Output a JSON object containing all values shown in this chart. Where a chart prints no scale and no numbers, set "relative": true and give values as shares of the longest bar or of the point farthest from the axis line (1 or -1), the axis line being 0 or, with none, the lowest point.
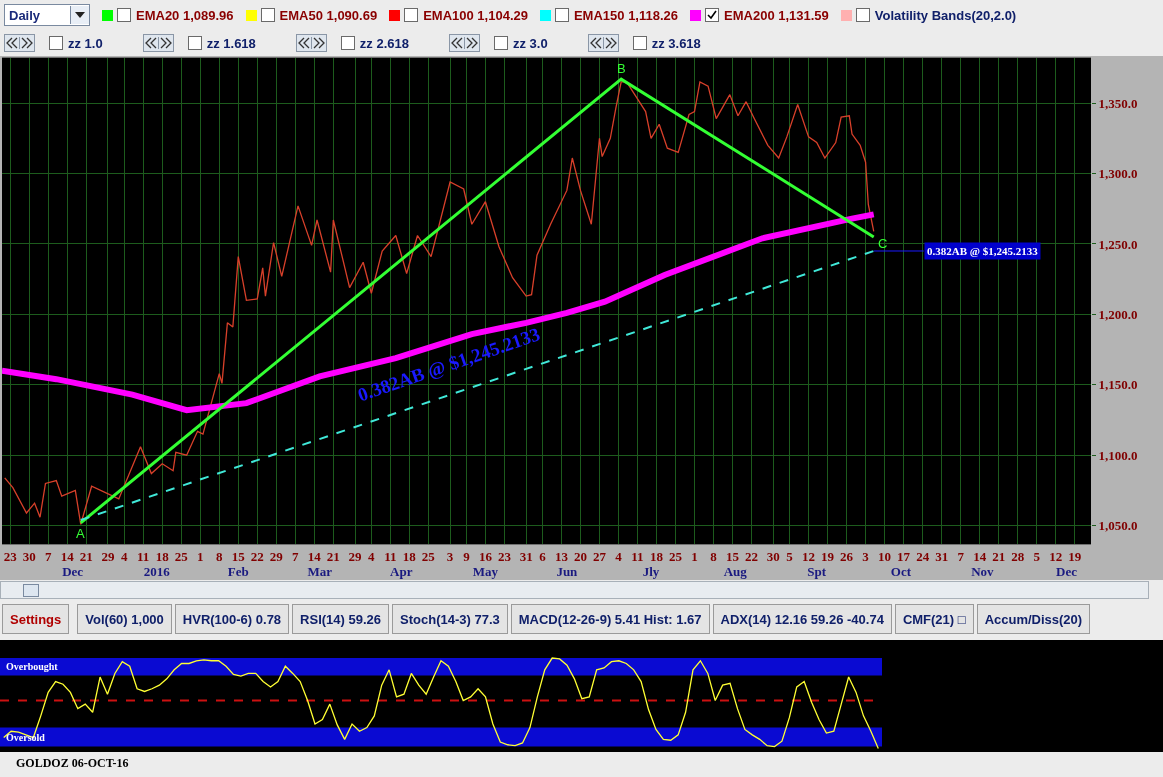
{
  "chart_data": [
    {
      "type": "other",
      "annotations": [
        "Daily",
        "EMA20 1,089.96",
        "EMA50 1,090.69",
        "EMA100 1,104.29",
        "EMA150 1,118.26",
        "EMA200 1,131.59",
        "Volatility Bands(20,2.0)",
        "zz 1.0",
        "zz 1.618",
        "zz 2.618",
        "zz 3.0",
        "zz 3.618"
      ]
    },
    {
      "type": "line",
      "grid": true,
      "x": [
        "2015-11-21",
        "2015-11-24",
        "2015-11-29",
        "2015-12-02",
        "2015-12-04",
        "2015-12-06",
        "2015-12-10",
        "2015-12-12",
        "2015-12-17",
        "2015-12-19",
        "2015-12-23",
        "2016-01-02",
        "2016-01-10",
        "2016-01-14",
        "2016-01-18",
        "2016-01-22",
        "2016-01-23",
        "2016-01-27",
        "2016-01-31",
        "2016-02-02",
        "2016-02-08",
        "2016-02-09",
        "2016-02-11",
        "2016-02-13",
        "2016-02-15",
        "2016-02-18",
        "2016-02-22",
        "2016-02-24",
        "2016-02-25",
        "2016-02-28",
        "2016-03-02",
        "2016-03-08",
        "2016-03-13",
        "2016-03-15",
        "2016-03-20",
        "2016-03-21",
        "2016-03-27",
        "2016-04-01",
        "2016-04-04",
        "2016-04-08",
        "2016-04-13",
        "2016-04-17",
        "2016-04-21",
        "2016-04-26",
        "2016-05-03",
        "2016-05-08",
        "2016-05-11",
        "2016-05-16",
        "2016-05-21",
        "2016-05-26",
        "2016-05-31",
        "2016-06-02",
        "2016-06-04",
        "2016-06-09",
        "2016-06-15",
        "2016-06-17",
        "2016-06-20",
        "2016-06-24",
        "2016-06-27",
        "2016-06-28",
        "2016-07-01",
        "2016-07-03",
        "2016-07-05",
        "2016-07-07",
        "2016-07-10",
        "2016-07-14",
        "2016-07-16",
        "2016-07-19",
        "2016-07-22",
        "2016-07-26",
        "2016-07-30",
        "2016-08-01",
        "2016-08-03",
        "2016-08-06",
        "2016-08-09",
        "2016-08-14",
        "2016-08-17",
        "2016-08-20",
        "2016-08-23",
        "2016-08-28",
        "2016-09-01",
        "2016-09-04",
        "2016-09-08",
        "2016-09-12",
        "2016-09-15",
        "2016-09-18",
        "2016-09-22",
        "2016-09-24",
        "2016-09-27",
        "2016-09-28",
        "2016-10-01",
        "2016-10-03",
        "2016-10-04",
        "2016-10-06"
      ],
      "series": [
        {
          "color": "#d8402a",
          "values": [
            1084,
            1077,
            1059,
            1066,
            1056,
            1080,
            1082,
            1071,
            1075,
            1051,
            1078,
            1069,
            1106,
            1087,
            1094,
            1089,
            1102,
            1100,
            1117,
            1115,
            1158,
            1151,
            1194,
            1191,
            1241,
            1210,
            1211,
            1233,
            1213,
            1251,
            1227,
            1277,
            1249,
            1267,
            1230,
            1267,
            1219,
            1237,
            1215,
            1245,
            1256,
            1229,
            1256,
            1241,
            1294,
            1289,
            1264,
            1280,
            1248,
            1226,
            1213,
            1214,
            1242,
            1264,
            1288,
            1311,
            1288,
            1264,
            1325,
            1312,
            1325,
            1346,
            1365,
            1365,
            1356,
            1344,
            1325,
            1335,
            1318,
            1315,
            1342,
            1344,
            1365,
            1362,
            1339,
            1356,
            1341,
            1351,
            1339,
            1320,
            1311,
            1326,
            1349,
            1326,
            1322,
            1311,
            1322,
            1340,
            1341,
            1328,
            1320,
            1308,
            1278,
            1259
          ]
        },
        {
          "color": "#ff00ff",
          "x": [
            "2015-11-20",
            "2015-12-10",
            "2016-01-07",
            "2016-01-27",
            "2016-02-18",
            "2016-03-16",
            "2016-04-13",
            "2016-05-11",
            "2016-05-31",
            "2016-06-15",
            "2016-06-29",
            "2016-07-21",
            "2016-08-26",
            "2016-09-28",
            "2016-10-06"
          ],
          "values": [
            1160,
            1154,
            1143,
            1132,
            1137,
            1156,
            1169,
            1186,
            1194,
            1201,
            1209,
            1228,
            1254,
            1268,
            1271
          ]
        },
        {
          "color": "#33ff33",
          "x": [
            "2015-12-19",
            "2016-07-05",
            "2016-10-06"
          ],
          "values": [
            1052,
            1367,
            1255
          ]
        },
        {
          "color": "#40e8d8",
          "line_style": "dashed",
          "x": [
            "2015-12-19",
            "2016-10-06"
          ],
          "values": [
            1054,
            1245
          ]
        }
      ],
      "xlim": [
        "2015-11-20",
        "2016-12-25"
      ],
      "xticks": [
        {
          "value": "2015-11-23",
          "label": "23"
        },
        {
          "value": "2015-11-30",
          "label": "30"
        },
        {
          "value": "2015-12-07",
          "label": "7"
        },
        {
          "value": "2015-12-14",
          "label": "14"
        },
        {
          "value": "2015-12-21",
          "label": "21"
        },
        {
          "value": "2015-12-29",
          "label": "29"
        },
        {
          "value": "2016-01-04",
          "label": "4"
        },
        {
          "value": "2016-01-11",
          "label": "11"
        },
        {
          "value": "2016-01-18",
          "label": "18"
        },
        {
          "value": "2016-01-25",
          "label": "25"
        },
        {
          "value": "2016-02-01",
          "label": "1"
        },
        {
          "value": "2016-02-08",
          "label": "8"
        },
        {
          "value": "2016-02-15",
          "label": "15"
        },
        {
          "value": "2016-02-22",
          "label": "22"
        },
        {
          "value": "2016-02-29",
          "label": "29"
        },
        {
          "value": "2016-03-07",
          "label": "7"
        },
        {
          "value": "2016-03-14",
          "label": "14"
        },
        {
          "value": "2016-03-21",
          "label": "21"
        },
        {
          "value": "2016-03-29",
          "label": "29"
        },
        {
          "value": "2016-04-04",
          "label": "4"
        },
        {
          "value": "2016-04-11",
          "label": "11"
        },
        {
          "value": "2016-04-18",
          "label": "18"
        },
        {
          "value": "2016-04-25",
          "label": "25"
        },
        {
          "value": "2016-05-03",
          "label": "3"
        },
        {
          "value": "2016-05-09",
          "label": "9"
        },
        {
          "value": "2016-05-16",
          "label": "16"
        },
        {
          "value": "2016-05-23",
          "label": "23"
        },
        {
          "value": "2016-05-31",
          "label": "31"
        },
        {
          "value": "2016-06-06",
          "label": "6"
        },
        {
          "value": "2016-06-13",
          "label": "13"
        },
        {
          "value": "2016-06-20",
          "label": "20"
        },
        {
          "value": "2016-06-27",
          "label": "27"
        },
        {
          "value": "2016-07-04",
          "label": "4"
        },
        {
          "value": "2016-07-11",
          "label": "11"
        },
        {
          "value": "2016-07-18",
          "label": "18"
        },
        {
          "value": "2016-07-25",
          "label": "25"
        },
        {
          "value": "2016-08-01",
          "label": "1"
        },
        {
          "value": "2016-08-08",
          "label": "8"
        },
        {
          "value": "2016-08-15",
          "label": "15"
        },
        {
          "value": "2016-08-22",
          "label": "22"
        },
        {
          "value": "2016-08-30",
          "label": "30"
        },
        {
          "value": "2016-09-05",
          "label": "5"
        },
        {
          "value": "2016-09-12",
          "label": "12"
        },
        {
          "value": "2016-09-19",
          "label": "19"
        },
        {
          "value": "2016-09-26",
          "label": "26"
        },
        {
          "value": "2016-10-03",
          "label": "3"
        },
        {
          "value": "2016-10-10",
          "label": "10"
        },
        {
          "value": "2016-10-17",
          "label": "17"
        },
        {
          "value": "2016-10-24",
          "label": "24"
        },
        {
          "value": "2016-10-31",
          "label": "31"
        },
        {
          "value": "2016-11-07",
          "label": "7"
        },
        {
          "value": "2016-11-14",
          "label": "14"
        },
        {
          "value": "2016-11-21",
          "label": "21"
        },
        {
          "value": "2016-11-28",
          "label": "28"
        },
        {
          "value": "2016-12-05",
          "label": "5"
        },
        {
          "value": "2016-12-12",
          "label": "12"
        },
        {
          "value": "2016-12-19",
          "label": "19"
        }
      ],
      "x2lim": [
        "2015-11-20",
        "2016-12-25"
      ],
      "x2ticks": [
        {
          "value": "2015-12-16",
          "label": "Dec"
        },
        {
          "value": "2016-01-16",
          "label": "2016"
        },
        {
          "value": "2016-02-15",
          "label": "Feb"
        },
        {
          "value": "2016-03-16",
          "label": "Mar"
        },
        {
          "value": "2016-04-15",
          "label": "Apr"
        },
        {
          "value": "2016-05-16",
          "label": "May"
        },
        {
          "value": "2016-06-15",
          "label": "Jun"
        },
        {
          "value": "2016-07-16",
          "label": "Jly"
        },
        {
          "value": "2016-08-16",
          "label": "Aug"
        },
        {
          "value": "2016-09-15",
          "label": "Spt"
        },
        {
          "value": "2016-10-16",
          "label": "Oct"
        },
        {
          "value": "2016-11-15",
          "label": "Nov"
        },
        {
          "value": "2016-12-16",
          "label": "Dec"
        }
      ],
      "ylim": [
        1037,
        1382
      ],
      "yticks": [
        {
          "value": 1050,
          "label": "1,050.0"
        },
        {
          "value": 1100,
          "label": "1,100.0"
        },
        {
          "value": 1150,
          "label": "1,150.0"
        },
        {
          "value": 1200,
          "label": "1,200.0"
        },
        {
          "value": 1250,
          "label": "1,250.0"
        },
        {
          "value": 1300,
          "label": "1,300.0"
        },
        {
          "value": 1350,
          "label": "1,350.0"
        }
      ],
      "annotations": [
        {
          "text": "A",
          "x": "2015-12-19",
          "y": 1052
        },
        {
          "text": "B",
          "x": "2016-07-05",
          "y": 1367
        },
        {
          "text": "C",
          "x": "2016-10-06",
          "y": 1255
        },
        {
          "text": "0.382AB @ $1,245.2133",
          "x": "2016-10-06",
          "y": 1245
        },
        "0.382AB @ $1,245.2133"
      ]
    },
    {
      "type": "other",
      "annotations": [
        "Settings",
        "Vol(60) 1,000",
        "HVR(100-6) 0.78",
        "RSI(14) 59.26",
        "Stoch(14-3) 77.3",
        "MACD(12-26-9) 5.41 Hist: 1.67",
        "ADX(14) 12.16 59.26 -40.74",
        "CMF(21) □",
        "Accum/Diss(20)"
      ]
    },
    {
      "type": "line",
      "relative": true,
      "categories": [
        null,
        null,
        null,
        null,
        null,
        null,
        null,
        null,
        null,
        null,
        null,
        null,
        null,
        null,
        null,
        null,
        null,
        null,
        null,
        null,
        null,
        null,
        null,
        null,
        null,
        null,
        null,
        null,
        null,
        null,
        null,
        null,
        null,
        null,
        null,
        null,
        null,
        null,
        null,
        null,
        null,
        null,
        null,
        null,
        null,
        null,
        null,
        null,
        null,
        null,
        null,
        null,
        null,
        null,
        null,
        null,
        null,
        null,
        null,
        null,
        null,
        null,
        null,
        null,
        null,
        null,
        null,
        null,
        null,
        null,
        null,
        null,
        null,
        null,
        null,
        null,
        null,
        null,
        null,
        null,
        null,
        null,
        null,
        null,
        null,
        null,
        null,
        null,
        null,
        null,
        null,
        null,
        null,
        null,
        null,
        null,
        null,
        null,
        null,
        null,
        null,
        null,
        null,
        null,
        null,
        null,
        null,
        null,
        null,
        null,
        null,
        null,
        null,
        null,
        null,
        null,
        null,
        null,
        null
      ],
      "series": [
        {
          "color": "#ffff33",
          "values": [
            0.12,
            0.19,
            0.18,
            0.15,
            0.12,
            0.36,
            0.62,
            0.74,
            0.71,
            0.62,
            0.44,
            0.49,
            0.4,
            0.79,
            0.6,
            0.83,
            0.96,
            0.91,
            0.66,
            0.63,
            0.66,
            0.7,
            0.77,
            0.87,
            0.94,
            0.94,
            0.97,
            0.98,
            0.97,
            0.97,
            0.91,
            0.82,
            0.8,
            0.83,
            0.83,
            0.74,
            0.68,
            0.74,
            0.91,
            0.83,
            0.74,
            0.53,
            0.27,
            0.32,
            0.49,
            0.26,
            0.1,
            0.27,
            0.19,
            0.23,
            0.36,
            0.7,
            0.87,
            0.57,
            0.6,
            0.83,
            0.7,
            0.6,
            0.79,
            0.97,
            0.91,
            0.74,
            0.53,
            0.57,
            0.66,
            0.57,
            0.27,
            0.07,
            0.04,
            0.03,
            0.06,
            0.23,
            0.57,
            0.87,
            1,
            0.99,
            0.92,
            0.77,
            0.55,
            0.57,
            0.87,
            0.89,
            0.96,
            0.97,
            0.94,
            0.87,
            0.74,
            0.43,
            0.21,
            0.1,
            0.09,
            0.15,
            0.4,
            0.87,
            0.97,
            0.83,
            0.53,
            0.7,
            0.72,
            0.44,
            0.21,
            0.15,
            0.1,
            0.03,
            0.02,
            0.08,
            0.34,
            0.68,
            0.74,
            0.51,
            0.32,
            0.17,
            0.19,
            0.49,
            0.79,
            0.62,
            0.36,
            0.19,
            0
          ]
        }
      ],
      "bands": [
        {
          "axis": "y",
          "from": 0.806,
          "to": 1,
          "label": "Overbought",
          "color": "#0a0ad2"
        },
        {
          "axis": "y",
          "from": 0.02,
          "to": 0.23,
          "label": "Oversold",
          "color": "#0a0ad2"
        }
      ],
      "ref_lines": [
        {
          "axis": "y",
          "value": 0.53,
          "color": "#cc1111",
          "line_style": "dashed"
        }
      ],
      "annotations": [
        "GOLDOZ 06-OCT-16"
      ]
    }
  ]
}
